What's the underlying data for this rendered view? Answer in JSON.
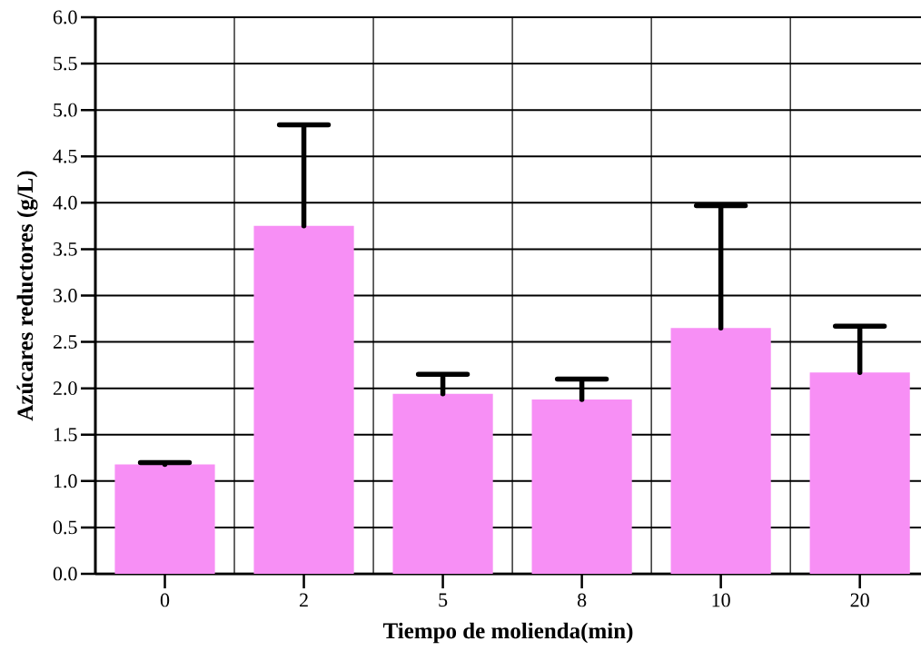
{
  "chart_data": {
    "type": "bar",
    "xlabel": "Tiempo de molienda(min)",
    "ylabel": "Azúcares reductores (g/L)",
    "categories": [
      "0",
      "2",
      "5",
      "8",
      "10",
      "20"
    ],
    "values": [
      1.18,
      3.75,
      1.94,
      1.88,
      2.65,
      2.17
    ],
    "color": "#f78ff5",
    "errors": [
      [
        1.18,
        1.2
      ],
      [
        3.75,
        4.84
      ],
      [
        1.94,
        2.15
      ],
      [
        1.88,
        2.1
      ],
      [
        2.65,
        3.97
      ],
      [
        2.17,
        2.67
      ]
    ],
    "ylim": [
      0,
      6
    ],
    "yticks": [
      {
        "value": 0,
        "label": "0.0"
      },
      0.5,
      {
        "value": 1,
        "label": "1.0"
      },
      1.5,
      {
        "value": 2,
        "label": "2.0"
      },
      2.5,
      {
        "value": 3,
        "label": "3.0"
      },
      3.5,
      {
        "value": 4,
        "label": "4.0"
      },
      4.5,
      {
        "value": 5,
        "label": "5.0"
      },
      5.5,
      {
        "value": 6,
        "label": "6.0"
      }
    ],
    "grid": true
  }
}
